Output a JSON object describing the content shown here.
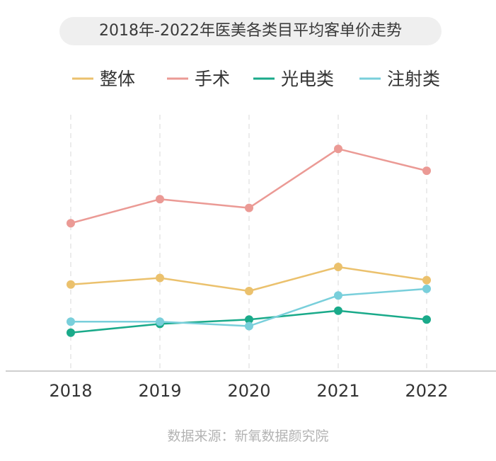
{
  "colors": {
    "background": "#ffffff",
    "title_pill": "#efefef",
    "grid": "#e6e6e6",
    "axis": "#bfbfbf",
    "source_text": "#b3b3b3"
  },
  "chart_data": {
    "type": "line",
    "title": "2018年-2022年医美各类目平均客单价走势",
    "categories": [
      "2018",
      "2019",
      "2020",
      "2021",
      "2022"
    ],
    "xlabel": "",
    "ylabel": "",
    "ylim": [
      0,
      100
    ],
    "y_axis_visible": false,
    "grid": "vertical-dashed",
    "legend_position": "top",
    "series": [
      {
        "name": "整体",
        "color": "#ebc16d",
        "values": [
          36,
          39,
          33,
          44,
          38
        ]
      },
      {
        "name": "手术",
        "color": "#eb9a95",
        "values": [
          64,
          75,
          71,
          98,
          88
        ]
      },
      {
        "name": "光电类",
        "color": "#1aaa8a",
        "values": [
          14,
          18,
          20,
          24,
          20
        ]
      },
      {
        "name": "注射类",
        "color": "#79cfdb",
        "values": [
          19,
          19,
          17,
          31,
          34
        ]
      }
    ],
    "source": "数据来源：新氧数据颜究院"
  }
}
